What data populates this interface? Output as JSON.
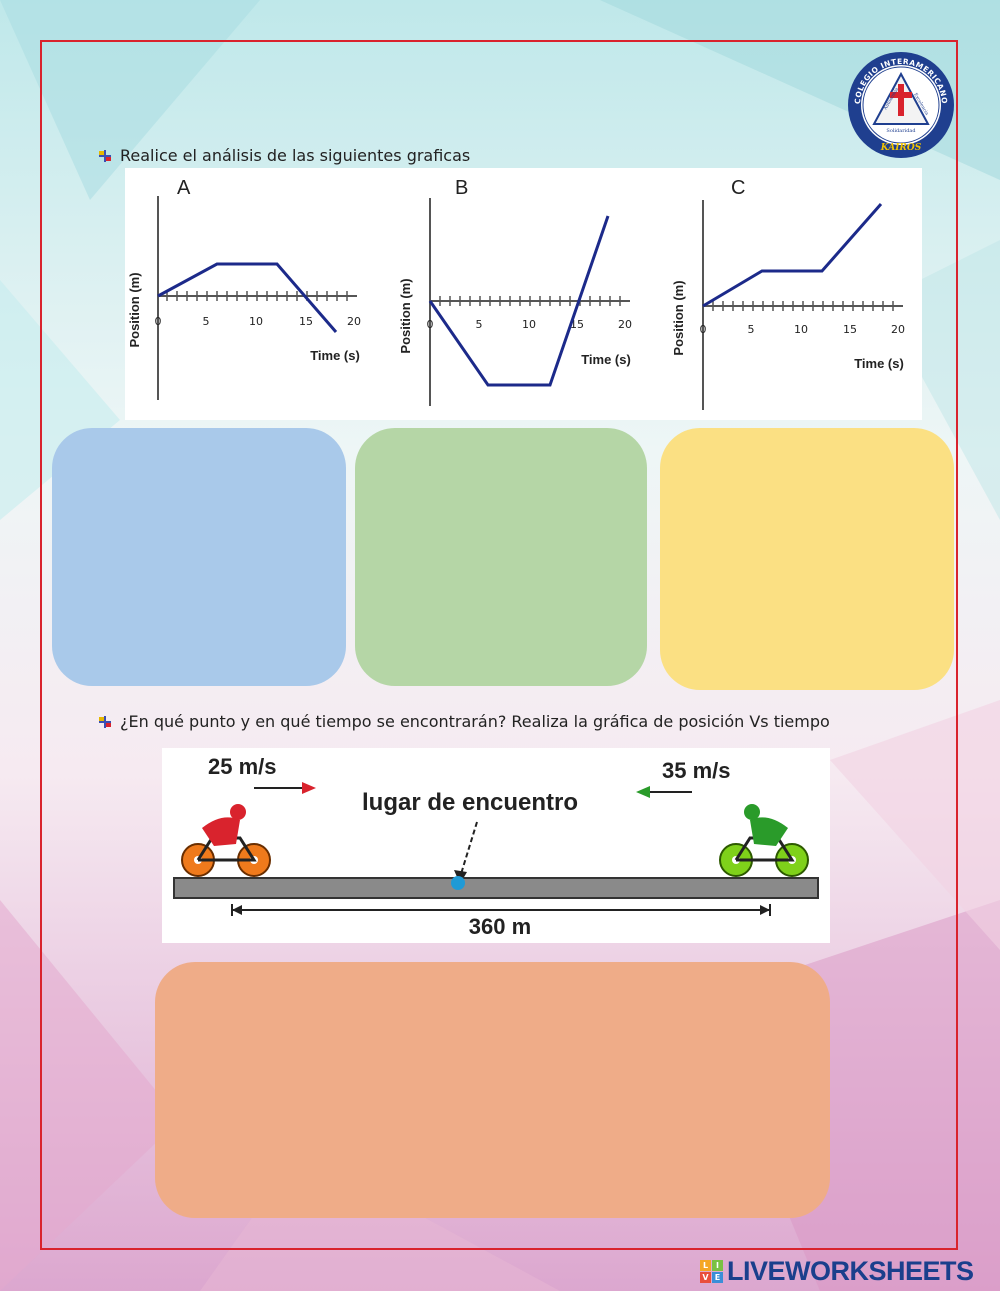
{
  "logo": {
    "arc_text": "COLEGIO INTERAMERICANO",
    "bottom_text": "KAIROS",
    "motto_left": "Autonomía",
    "motto_right": "Excelencia",
    "motto_bottom": "Solidaridad"
  },
  "question1": {
    "text": "Realice el análisis de las siguientes graficas"
  },
  "graphs": [
    {
      "letter": "A",
      "ylabel": "Position (m)",
      "xlabel": "Time (s)",
      "ticks": [
        "0",
        "5",
        "10",
        "15",
        "20"
      ]
    },
    {
      "letter": "B",
      "ylabel": "Position (m)",
      "xlabel": "Time (s)",
      "ticks": [
        "0",
        "5",
        "10",
        "15",
        "20"
      ]
    },
    {
      "letter": "C",
      "ylabel": "Position (m)",
      "xlabel": "Time (s)",
      "ticks": [
        "0",
        "5",
        "10",
        "15",
        "20"
      ]
    }
  ],
  "answer_boxes": [
    {
      "color": "#a9c9ea"
    },
    {
      "color": "#b5d6a6"
    },
    {
      "color": "#fbe083"
    }
  ],
  "question2": {
    "text": "¿En qué punto y en qué tiempo se encontrarán? Realiza la gráfica de posición Vs tiempo"
  },
  "scene": {
    "left_speed": "25 m/s",
    "right_speed": "35 m/s",
    "meeting_label": "lugar de encuentro",
    "distance": "360 m"
  },
  "answer_box_2": {
    "color": "#efac88"
  },
  "branding": {
    "text": "LIVEWORKSHEETS",
    "badge": [
      "L",
      "I",
      "V",
      "E"
    ]
  }
}
